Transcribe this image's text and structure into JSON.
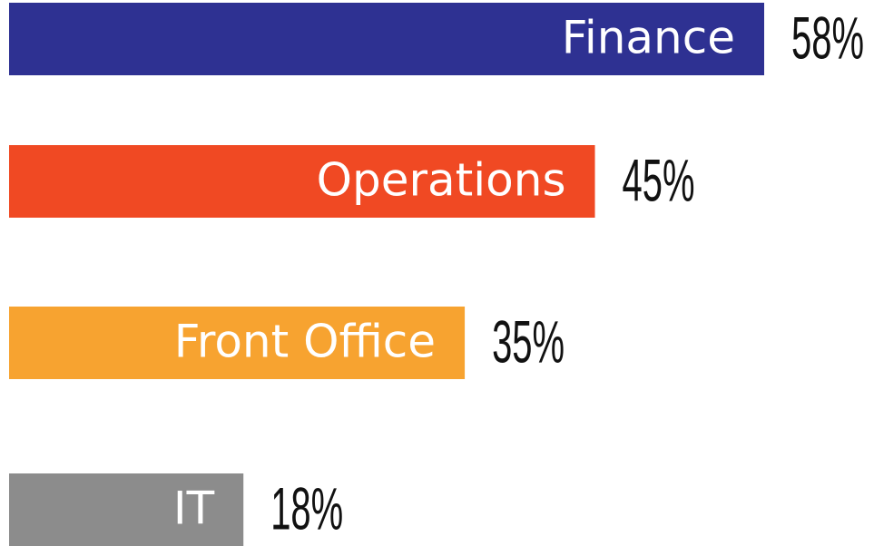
{
  "chart_data": {
    "type": "bar",
    "orientation": "horizontal",
    "categories": [
      "Finance",
      "Operations",
      "Front Office",
      "IT"
    ],
    "values": [
      58,
      45,
      35,
      18
    ],
    "value_labels": [
      "58%",
      "45%",
      "35%",
      "18%"
    ],
    "colors": [
      "#2e3192",
      "#f04923",
      "#f7a330",
      "#8c8c8c"
    ]
  }
}
